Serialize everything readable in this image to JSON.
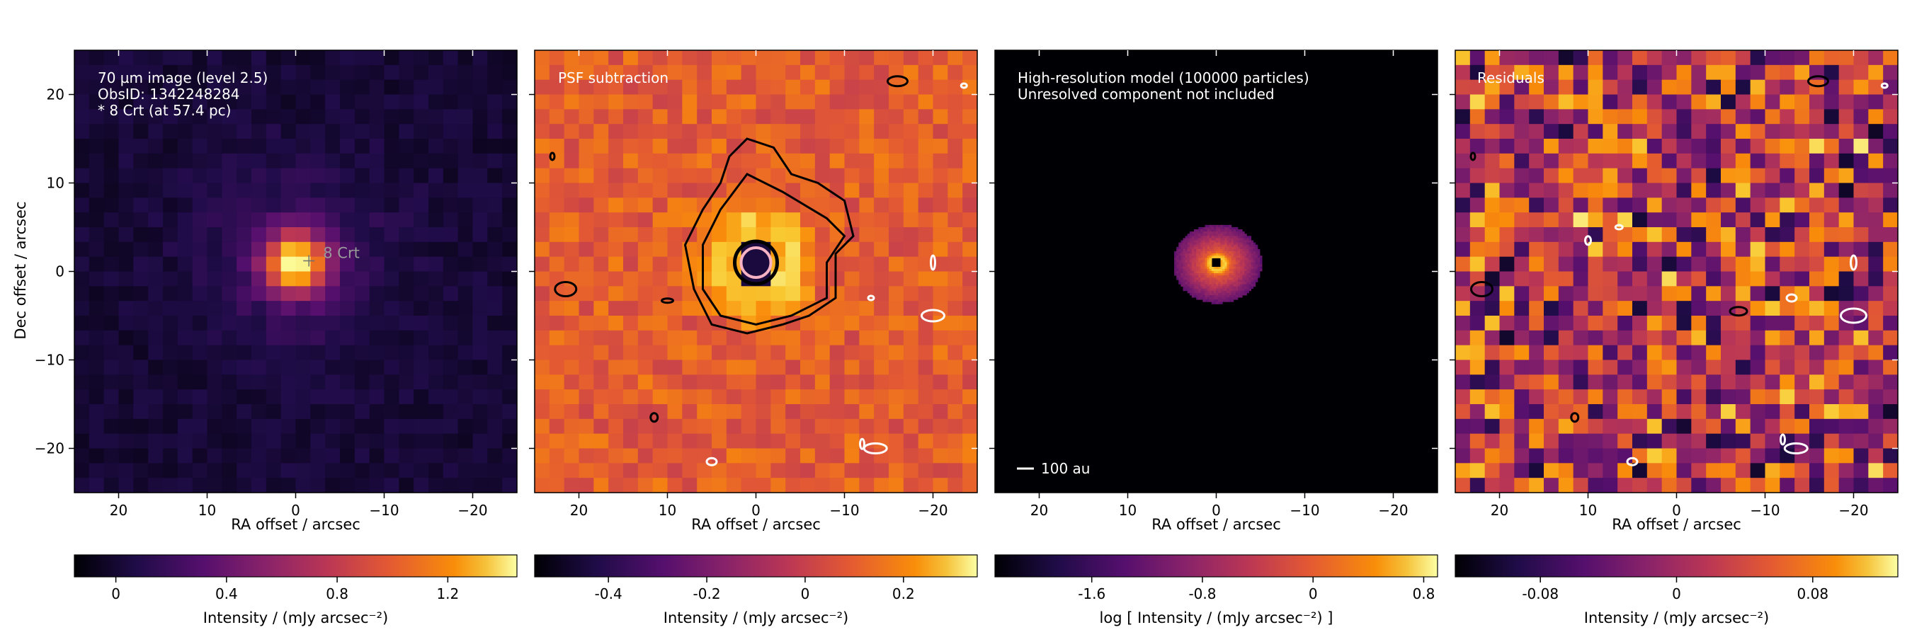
{
  "figure": {
    "ylabel": "Dec offset / arcsec"
  },
  "chart_data": [
    {
      "type": "heatmap",
      "annotation": [
        "70 µm image (level 2.5)",
        "ObsID: 1342248284",
        "* 8 Crt (at 57.4 pc)"
      ],
      "star_label": "8 Crt",
      "star_position": {
        "ra": -1.5,
        "dec": 1.2
      },
      "xlabel": "RA offset / arcsec",
      "ylabel": "Dec offset / arcsec",
      "xlim": [
        25,
        -25
      ],
      "ylim": [
        -25,
        25
      ],
      "xticks": [
        20,
        10,
        0,
        -10,
        -20
      ],
      "yticks": [
        20,
        10,
        0,
        -10,
        -20
      ],
      "colormap": "inferno",
      "colorbar": {
        "label": "Intensity / (mJy arcsec⁻²)",
        "range": [
          -0.15,
          1.45
        ],
        "ticks": [
          "0",
          "0.4",
          "0.8",
          "1.2"
        ],
        "tick_values": [
          0,
          0.4,
          0.8,
          1.2
        ]
      },
      "source": {
        "ra": 0,
        "dec": 1,
        "peak": 1.3
      }
    },
    {
      "type": "heatmap",
      "annotation": [
        "PSF subtraction"
      ],
      "xlabel": "RA offset / arcsec",
      "xlim": [
        25,
        -25
      ],
      "ylim": [
        -25,
        25
      ],
      "xticks": [
        20,
        10,
        0,
        -10,
        -20
      ],
      "colormap": "inferno",
      "colorbar": {
        "label": "Intensity / (mJy arcsec⁻²)",
        "range": [
          -0.55,
          0.35
        ],
        "ticks": [
          "-0.4",
          "-0.2",
          "0",
          "0.2"
        ],
        "tick_values": [
          -0.4,
          -0.2,
          0,
          0.2
        ]
      },
      "contours": "black (positive) and white (negative) significance contours"
    },
    {
      "type": "heatmap",
      "annotation": [
        "High-resolution model (100000 particles)",
        "Unresolved component not included"
      ],
      "scalebar_label": "100 au",
      "xlabel": "RA offset / arcsec",
      "xlim": [
        25,
        -25
      ],
      "ylim": [
        -25,
        25
      ],
      "xticks": [
        20,
        10,
        0,
        -10,
        -20
      ],
      "colormap": "inferno",
      "colorbar": {
        "label": "log [ Intensity / (mJy arcsec⁻²) ]",
        "range": [
          -2.3,
          0.9
        ],
        "ticks": [
          "-1.6",
          "-0.8",
          "0",
          "0.8"
        ],
        "tick_values": [
          -1.6,
          -0.8,
          0,
          0.8
        ]
      },
      "disk": {
        "ra": 0,
        "dec": 1,
        "radius_arcsec": 5
      }
    },
    {
      "type": "heatmap",
      "annotation": [
        "Residuals"
      ],
      "xlabel": "RA offset / arcsec",
      "xlim": [
        25,
        -25
      ],
      "ylim": [
        -25,
        25
      ],
      "xticks": [
        20,
        10,
        0,
        -10,
        -20
      ],
      "colormap": "inferno",
      "colorbar": {
        "label": "Intensity / (mJy arcsec⁻²)",
        "range": [
          -0.13,
          0.13
        ],
        "ticks": [
          "-0.08",
          "0",
          "0.08"
        ],
        "tick_values": [
          -0.08,
          0,
          0.08
        ]
      },
      "contours": "black (positive) and white (negative) significance contours"
    }
  ]
}
